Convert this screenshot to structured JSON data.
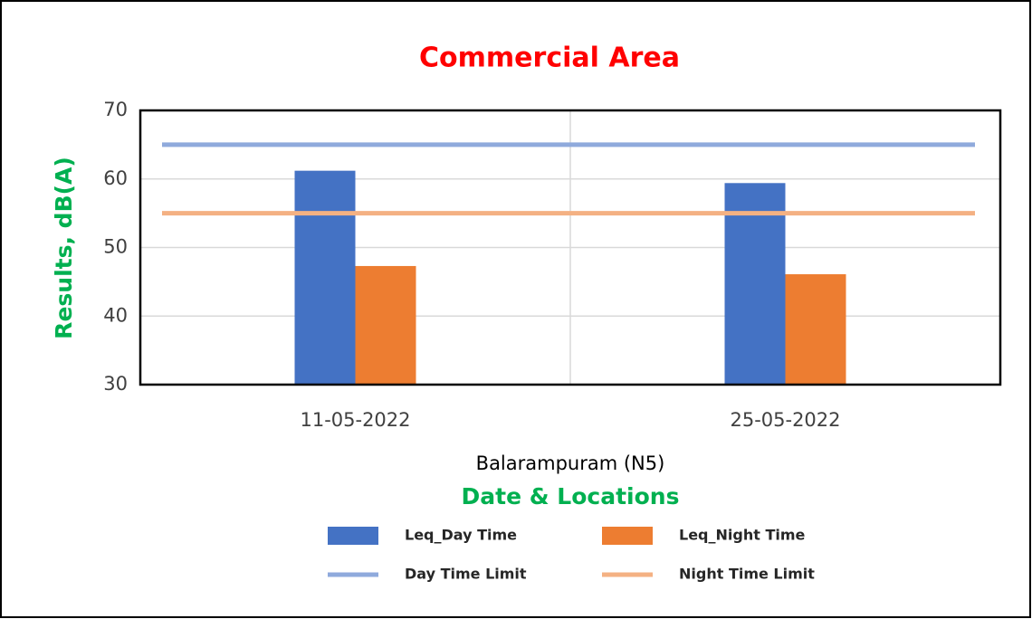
{
  "chart_data": {
    "type": "bar",
    "title": "Commercial Area",
    "y_label": "Results, dB(A)",
    "x_label": "Date & Locations",
    "group_label": "Balarampuram (N5)",
    "categories": [
      "11-05-2022",
      "25-05-2022"
    ],
    "series": [
      {
        "name": "Leq_Day Time",
        "type": "bar",
        "color": "#4472c4",
        "values": [
          61.2,
          59.4
        ]
      },
      {
        "name": "Leq_Night Time",
        "type": "bar",
        "color": "#ed7d31",
        "values": [
          47.3,
          46.1
        ]
      },
      {
        "name": "Day Time Limit",
        "type": "line",
        "color": "#8faadc",
        "values": [
          65,
          65
        ]
      },
      {
        "name": "Night Time Limit",
        "type": "line",
        "color": "#f4b183",
        "values": [
          55,
          55
        ]
      }
    ],
    "ylim": [
      30,
      70
    ],
    "yticks": [
      30,
      40,
      50,
      60,
      70
    ],
    "grid": true
  }
}
